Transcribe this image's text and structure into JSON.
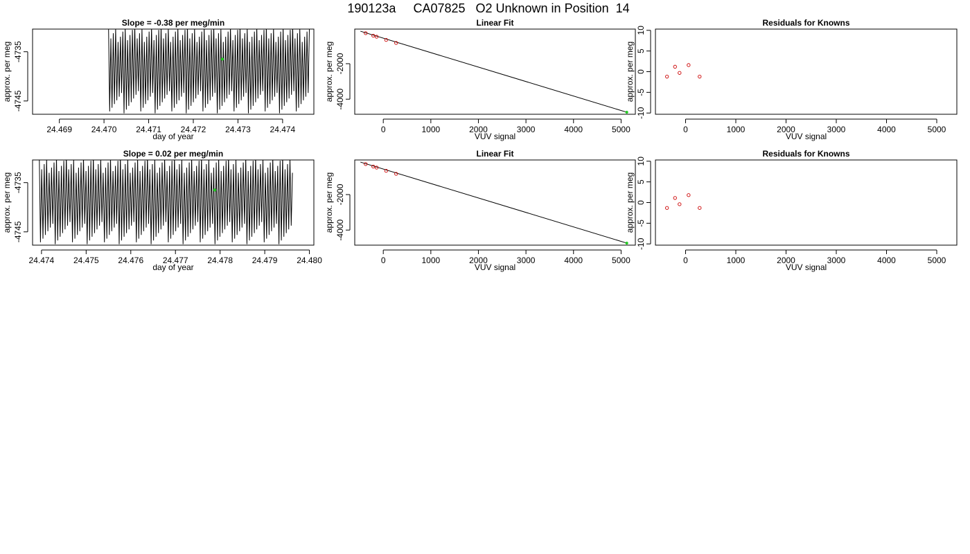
{
  "page": {
    "title": "190123a     CA07825   O2 Unknown in Position  14"
  },
  "chart_data": [
    {
      "type": "line",
      "title": "Slope =  -0.38  per meg/min",
      "xlabel": "day of year",
      "ylabel": "approx. per meg",
      "xlim": [
        24.4684,
        24.4747
      ],
      "ylim": [
        -4747.7,
        -4730.4
      ],
      "x_ticks": [
        "24.469",
        "24.470",
        "24.471",
        "24.472",
        "24.473",
        "24.474"
      ],
      "y_ticks": [
        "-4735",
        "-4745"
      ],
      "y_tick_values": [
        -4735,
        -4745
      ],
      "series": [
        {
          "style": "oscillating-line",
          "x_start": 24.4701,
          "x_end": 24.4746,
          "cycles": 84,
          "y_high": -4729.5,
          "y_low": -4747.5,
          "y_high_min": -4733.0,
          "y_low_max": -4743.0
        },
        {
          "style": "point",
          "x": [
            24.47265
          ],
          "y": [
            -4736.5
          ],
          "color": "#22cc22"
        }
      ]
    },
    {
      "type": "scatter",
      "title": "Linear Fit",
      "xlabel": "VUV signal",
      "ylabel": "approx. per meg",
      "xlim": [
        -600,
        5300
      ],
      "ylim": [
        -4850,
        -50
      ],
      "x_ticks": [
        "0",
        "1000",
        "2000",
        "3000",
        "4000",
        "5000"
      ],
      "y_ticks": [
        "-2000",
        "-4000"
      ],
      "y_tick_values": [
        -2000,
        -4000
      ],
      "series": [
        {
          "style": "line",
          "x": [
            -480,
            5120
          ],
          "y": [
            -170,
            -4735
          ],
          "color": "#000000"
        },
        {
          "style": "open-circles",
          "x": [
            -370,
            -210,
            -140,
            60,
            270
          ],
          "y": [
            -280,
            -420,
            -480,
            -660,
            -830
          ],
          "color": "#cc0000"
        },
        {
          "style": "point",
          "x": [
            5120
          ],
          "y": [
            -4735
          ],
          "color": "#22cc22"
        }
      ]
    },
    {
      "type": "scatter",
      "title": "Residuals for Knowns",
      "xlabel": "VUV signal",
      "ylabel": "approx. per meg",
      "xlim": [
        -600,
        5400
      ],
      "ylim": [
        -10.3,
        10.3
      ],
      "x_ticks": [
        "0",
        "1000",
        "2000",
        "3000",
        "4000",
        "5000"
      ],
      "y_ticks": [
        "10",
        "5",
        "0",
        "-5",
        "-10"
      ],
      "y_tick_values": [
        10,
        5,
        0,
        -5,
        -10
      ],
      "series": [
        {
          "style": "open-circles",
          "x": [
            -370,
            -210,
            -120,
            60,
            280
          ],
          "y": [
            -1.2,
            1.2,
            -0.3,
            1.6,
            -1.2
          ],
          "color": "#cc0000"
        }
      ]
    },
    {
      "type": "line",
      "title": "Slope =  0.02  per meg/min",
      "xlabel": "day of year",
      "ylabel": "approx. per meg",
      "xlim": [
        24.4738,
        24.4801
      ],
      "ylim": [
        -4747.7,
        -4730.4
      ],
      "x_ticks": [
        "24.474",
        "24.475",
        "24.476",
        "24.477",
        "24.478",
        "24.479",
        "24.480"
      ],
      "y_ticks": [
        "-4735",
        "-4745"
      ],
      "y_tick_values": [
        -4735,
        -4745
      ],
      "series": [
        {
          "style": "oscillating-line",
          "x_start": 24.47395,
          "x_end": 24.47962,
          "cycles": 103,
          "y_high": -4729.5,
          "y_low": -4747.5,
          "y_high_min": -4733.0,
          "y_low_max": -4743.0
        },
        {
          "style": "point",
          "x": [
            24.47788
          ],
          "y": [
            -4736.5
          ],
          "color": "#22cc22"
        }
      ]
    },
    {
      "type": "scatter",
      "title": "Linear Fit",
      "xlabel": "VUV signal",
      "ylabel": "approx. per meg",
      "xlim": [
        -600,
        5300
      ],
      "ylim": [
        -4850,
        -50
      ],
      "x_ticks": [
        "0",
        "1000",
        "2000",
        "3000",
        "4000",
        "5000"
      ],
      "y_ticks": [
        "-2000",
        "-4000"
      ],
      "y_tick_values": [
        -2000,
        -4000
      ],
      "series": [
        {
          "style": "line",
          "x": [
            -480,
            5120
          ],
          "y": [
            -170,
            -4735
          ],
          "color": "#000000"
        },
        {
          "style": "open-circles",
          "x": [
            -370,
            -210,
            -140,
            60,
            270
          ],
          "y": [
            -280,
            -420,
            -480,
            -660,
            -830
          ],
          "color": "#cc0000"
        },
        {
          "style": "point",
          "x": [
            5120
          ],
          "y": [
            -4735
          ],
          "color": "#22cc22"
        }
      ]
    },
    {
      "type": "scatter",
      "title": "Residuals for Knowns",
      "xlabel": "VUV signal",
      "ylabel": "approx. per meg",
      "xlim": [
        -600,
        5400
      ],
      "ylim": [
        -10.3,
        10.3
      ],
      "x_ticks": [
        "0",
        "1000",
        "2000",
        "3000",
        "4000",
        "5000"
      ],
      "y_ticks": [
        "10",
        "5",
        "0",
        "-5",
        "-10"
      ],
      "y_tick_values": [
        10,
        5,
        0,
        -5,
        -10
      ],
      "series": [
        {
          "style": "open-circles",
          "x": [
            -370,
            -210,
            -120,
            60,
            280
          ],
          "y": [
            -1.3,
            1.1,
            -0.4,
            1.8,
            -1.3
          ],
          "color": "#cc0000"
        }
      ]
    }
  ]
}
